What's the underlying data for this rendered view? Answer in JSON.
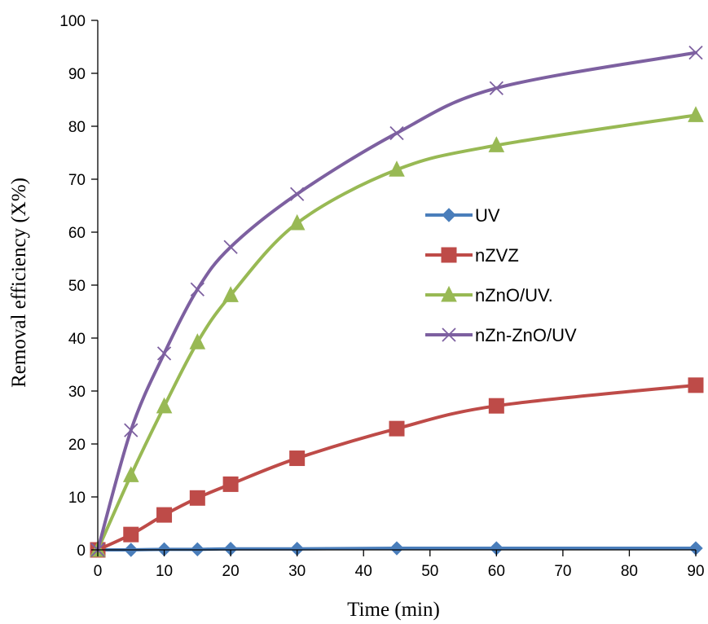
{
  "chart_data": {
    "type": "line",
    "xlabel": "Time (min)",
    "ylabel": "Removal efficiency (X%)",
    "xlim": [
      0,
      90
    ],
    "ylim": [
      0,
      100
    ],
    "x_ticks": [
      0,
      10,
      20,
      30,
      40,
      50,
      60,
      70,
      80,
      90
    ],
    "y_ticks": [
      0,
      10,
      20,
      30,
      40,
      50,
      60,
      70,
      80,
      90,
      100
    ],
    "grid": false,
    "legend_position": "center-right",
    "x": [
      0,
      5,
      10,
      15,
      20,
      30,
      45,
      60,
      90
    ],
    "series": [
      {
        "name": "UV",
        "marker": "diamond",
        "color": "#4a7ebb",
        "values": [
          0,
          0,
          0.1,
          0.1,
          0.2,
          0.2,
          0.3,
          0.3,
          0.3
        ]
      },
      {
        "name": "nZVZ",
        "marker": "square",
        "color": "#be4b48",
        "values": [
          0,
          2.9,
          6.6,
          9.8,
          12.4,
          17.3,
          22.9,
          27.2,
          31.1
        ]
      },
      {
        "name": "nZnO/UV.",
        "marker": "triangle",
        "color": "#98b954",
        "values": [
          0,
          14.1,
          27.1,
          39.2,
          48.1,
          61.7,
          71.8,
          76.4,
          82.1
        ]
      },
      {
        "name": "nZn-ZnO/UV",
        "marker": "x",
        "color": "#7d60a0",
        "values": [
          0,
          22.6,
          37.1,
          49.2,
          57.2,
          67.2,
          78.7,
          87.2,
          93.9
        ]
      }
    ]
  }
}
